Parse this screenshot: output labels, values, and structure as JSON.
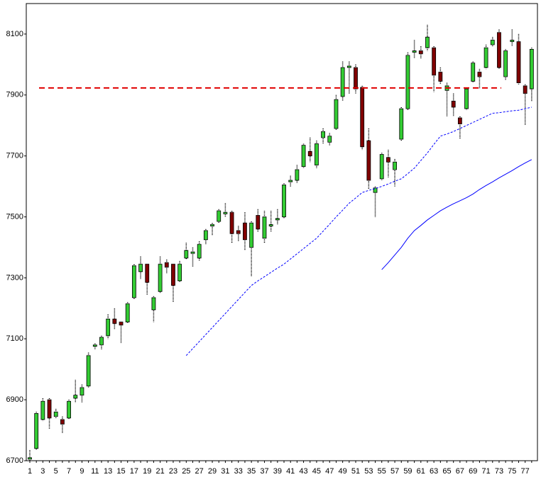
{
  "chart_data": {
    "type": "candlestick",
    "categories": [
      "1",
      null,
      "3",
      null,
      "5",
      null,
      "7",
      null,
      "9",
      null,
      "11",
      null,
      "13",
      null,
      "15",
      null,
      "17",
      null,
      "19",
      null,
      "21",
      null,
      "23",
      null,
      "25",
      null,
      "27",
      null,
      "29",
      null,
      "31",
      null,
      "33",
      null,
      "35",
      null,
      "37",
      null,
      "39",
      null,
      "41",
      null,
      "43",
      null,
      "45",
      null,
      "47",
      null,
      "49",
      null,
      "51",
      null,
      "53",
      null,
      "55",
      null,
      "57",
      null,
      "59",
      null,
      "61",
      null,
      "63",
      null,
      "65",
      null,
      "67",
      null,
      "69",
      null,
      "71",
      null,
      "73",
      null,
      "75",
      null,
      "77",
      null
    ],
    "open": [
      6705,
      6740,
      6835,
      6900,
      6845,
      6835,
      6840,
      6905,
      6915,
      6945,
      7075,
      7080,
      7110,
      7165,
      7155,
      7155,
      7235,
      7320,
      7345,
      7195,
      7255,
      7350,
      7345,
      7290,
      7365,
      7380,
      7365,
      7425,
      7470,
      7485,
      7510,
      7515,
      7455,
      7480,
      7400,
      7505,
      7430,
      7470,
      7490,
      7500,
      7615,
      7620,
      7665,
      7715,
      7670,
      7760,
      7745,
      7790,
      7895,
      7990,
      7990,
      7925,
      7750,
      7580,
      7625,
      7695,
      7655,
      7755,
      7855,
      8040,
      8045,
      8055,
      8055,
      7975,
      7915,
      7880,
      7825,
      7855,
      7945,
      7975,
      7990,
      8065,
      8105,
      7960,
      8075,
      8075,
      7930,
      7920
    ],
    "high": [
      6735,
      6860,
      6905,
      6905,
      6870,
      6845,
      6900,
      6965,
      6950,
      7055,
      7085,
      7110,
      7180,
      7200,
      7155,
      7220,
      7345,
      7370,
      7345,
      7240,
      7370,
      7360,
      7345,
      7355,
      7415,
      7400,
      7420,
      7460,
      7480,
      7525,
      7545,
      7520,
      7470,
      7515,
      7485,
      7525,
      7520,
      7520,
      7525,
      7610,
      7635,
      7670,
      7740,
      7760,
      7750,
      7790,
      7775,
      7900,
      8010,
      8010,
      8000,
      7930,
      7790,
      7600,
      7710,
      7720,
      7690,
      7860,
      8040,
      8080,
      8060,
      8130,
      8060,
      7990,
      7940,
      7905,
      7830,
      7925,
      8010,
      7985,
      8065,
      8090,
      8115,
      8050,
      8115,
      8100,
      7935,
      8055
    ],
    "low": [
      6700,
      6735,
      6830,
      6805,
      6840,
      6790,
      6835,
      6890,
      6890,
      6940,
      7065,
      7065,
      7100,
      7130,
      7085,
      7150,
      7230,
      7295,
      7245,
      7155,
      7250,
      7315,
      7220,
      7285,
      7360,
      7335,
      7355,
      7410,
      7440,
      7480,
      7500,
      7415,
      7420,
      7390,
      7305,
      7450,
      7415,
      7450,
      7475,
      7495,
      7600,
      7610,
      7660,
      7680,
      7660,
      7740,
      7735,
      7785,
      7880,
      7905,
      7905,
      7720,
      7590,
      7500,
      7620,
      7630,
      7600,
      7750,
      7850,
      8020,
      8020,
      8045,
      7910,
      7935,
      7830,
      7830,
      7755,
      7850,
      7940,
      7920,
      7985,
      8060,
      7985,
      7950,
      8060,
      7935,
      7800,
      7880
    ],
    "close": [
      6710,
      6855,
      6895,
      6840,
      6860,
      6820,
      6895,
      6915,
      6940,
      7045,
      7080,
      7105,
      7165,
      7150,
      7145,
      7215,
      7340,
      7345,
      7285,
      7235,
      7345,
      7335,
      7275,
      7345,
      7390,
      7385,
      7410,
      7455,
      7475,
      7520,
      7515,
      7445,
      7445,
      7425,
      7480,
      7460,
      7500,
      7475,
      7495,
      7605,
      7620,
      7655,
      7735,
      7700,
      7740,
      7780,
      7765,
      7885,
      7990,
      7995,
      7920,
      7730,
      7620,
      7595,
      7705,
      7680,
      7680,
      7855,
      8030,
      8045,
      8035,
      8090,
      7965,
      7945,
      7930,
      7860,
      7805,
      7920,
      8005,
      7960,
      8055,
      8080,
      7990,
      8045,
      8080,
      7940,
      7905,
      8050
    ],
    "up_color": "#33cc33",
    "down_color": "#800000",
    "lines": [
      {
        "color": "#0000ff",
        "dashed": true,
        "values": [
          null,
          null,
          null,
          null,
          null,
          null,
          null,
          null,
          null,
          null,
          null,
          null,
          null,
          null,
          null,
          null,
          null,
          null,
          null,
          null,
          null,
          null,
          null,
          null,
          7045,
          7068,
          7091,
          7114,
          7137,
          7160,
          7183,
          7206,
          7229,
          7252,
          7275,
          7290,
          7304,
          7318,
          7332,
          7345,
          7362,
          7379,
          7396,
          7413,
          7430,
          7453,
          7476,
          7500,
          7522,
          7545,
          7562,
          7580,
          7587,
          7593,
          7600,
          7608,
          7617,
          7625,
          7642,
          7660,
          7685,
          7710,
          7738,
          7765,
          7772,
          7780,
          7790,
          7800,
          7810,
          7820,
          7830,
          7840,
          7842,
          7845,
          7848,
          7850,
          7855,
          7860
        ]
      },
      {
        "color": "#0000ff",
        "dashed": false,
        "values": [
          null,
          null,
          null,
          null,
          null,
          null,
          null,
          null,
          null,
          null,
          null,
          null,
          null,
          null,
          null,
          null,
          null,
          null,
          null,
          null,
          null,
          null,
          null,
          null,
          null,
          null,
          null,
          null,
          null,
          null,
          null,
          null,
          null,
          null,
          null,
          null,
          null,
          null,
          null,
          null,
          null,
          null,
          null,
          null,
          null,
          null,
          null,
          null,
          null,
          null,
          null,
          null,
          null,
          null,
          7327,
          7350,
          7375,
          7400,
          7430,
          7455,
          7472,
          7490,
          7505,
          7520,
          7532,
          7543,
          7553,
          7563,
          7575,
          7590,
          7603,
          7615,
          7628,
          7640,
          7652,
          7665,
          7677,
          7688
        ]
      }
    ],
    "reference_line": {
      "value": 7923,
      "color": "#e00000"
    },
    "ylim": [
      6700,
      8200
    ],
    "yticks": [
      6700,
      6900,
      7100,
      7300,
      7500,
      7700,
      7900,
      8100
    ],
    "grid": false
  }
}
